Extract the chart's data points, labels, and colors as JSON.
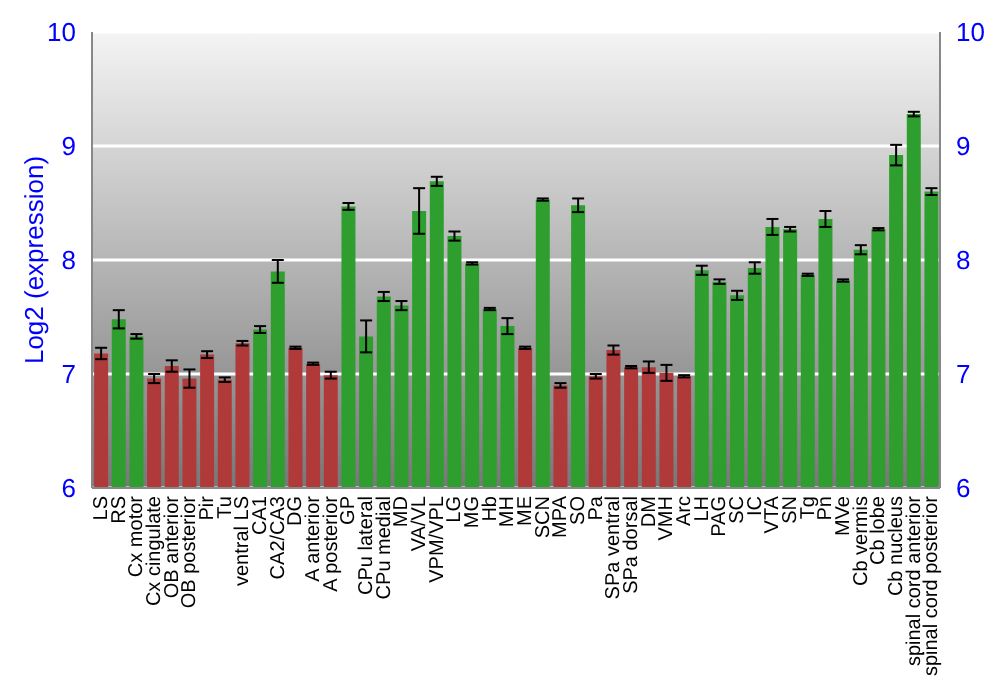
{
  "chart_data": {
    "type": "bar",
    "ylabel": "Log2 (expression)",
    "categories": [
      "LS",
      "RS",
      "Cx motor",
      "Cx cingulate",
      "OB anterior",
      "OB posterior",
      "Pir",
      "Tu",
      "ventral LS",
      "CA1",
      "CA2/CA3",
      "DG",
      "A anterior",
      "A posterior",
      "GP",
      "CPu lateral",
      "CPu medial",
      "MD",
      "VA/VL",
      "VPM/VPL",
      "LG",
      "MG",
      "Hb",
      "MH",
      "ME",
      "SCN",
      "MPA",
      "SO",
      "Pa",
      "SPa ventral",
      "SPa dorsal",
      "DM",
      "VMH",
      "Arc",
      "LH",
      "PAG",
      "SC",
      "IC",
      "VTA",
      "SN",
      "Tg",
      "Pn",
      "MVe",
      "Cb vermis",
      "Cb lobe",
      "Cb nucleus",
      "spinal cord anterior",
      "spinal cord posterior"
    ],
    "values": [
      7.18,
      7.48,
      7.33,
      6.96,
      7.07,
      6.96,
      7.17,
      6.95,
      7.27,
      7.39,
      7.9,
      7.23,
      7.09,
      6.99,
      8.47,
      7.33,
      7.68,
      7.6,
      8.43,
      8.69,
      8.21,
      7.97,
      7.57,
      7.42,
      7.23,
      8.53,
      6.9,
      8.48,
      6.98,
      7.21,
      7.06,
      7.06,
      7.01,
      6.98,
      7.91,
      7.81,
      7.69,
      7.93,
      8.29,
      8.27,
      7.87,
      8.36,
      7.82,
      8.09,
      8.27,
      8.92,
      9.28,
      8.6
    ],
    "errors": [
      0.05,
      0.08,
      0.02,
      0.04,
      0.05,
      0.08,
      0.03,
      0.02,
      0.02,
      0.03,
      0.1,
      0.01,
      0.01,
      0.03,
      0.03,
      0.14,
      0.04,
      0.04,
      0.2,
      0.04,
      0.04,
      0.01,
      0.01,
      0.07,
      0.01,
      0.01,
      0.02,
      0.06,
      0.02,
      0.04,
      0.01,
      0.05,
      0.07,
      0.01,
      0.04,
      0.02,
      0.04,
      0.05,
      0.07,
      0.02,
      0.01,
      0.07,
      0.01,
      0.04,
      0.01,
      0.09,
      0.02,
      0.03
    ],
    "colors": [
      "#b03a3a",
      "#2e9e2e",
      "#2e9e2e",
      "#b03a3a",
      "#b03a3a",
      "#b03a3a",
      "#b03a3a",
      "#b03a3a",
      "#b03a3a",
      "#2e9e2e",
      "#2e9e2e",
      "#b03a3a",
      "#b03a3a",
      "#b03a3a",
      "#2e9e2e",
      "#2e9e2e",
      "#2e9e2e",
      "#2e9e2e",
      "#2e9e2e",
      "#2e9e2e",
      "#2e9e2e",
      "#2e9e2e",
      "#2e9e2e",
      "#2e9e2e",
      "#b03a3a",
      "#2e9e2e",
      "#b03a3a",
      "#2e9e2e",
      "#b03a3a",
      "#b03a3a",
      "#b03a3a",
      "#b03a3a",
      "#b03a3a",
      "#b03a3a",
      "#2e9e2e",
      "#2e9e2e",
      "#2e9e2e",
      "#2e9e2e",
      "#2e9e2e",
      "#2e9e2e",
      "#2e9e2e",
      "#2e9e2e",
      "#2e9e2e",
      "#2e9e2e",
      "#2e9e2e",
      "#2e9e2e",
      "#2e9e2e",
      "#2e9e2e"
    ],
    "ylim": [
      6,
      10
    ],
    "yticks": [
      6,
      7,
      8,
      9,
      10
    ],
    "y2lim": [
      6,
      10
    ],
    "y2ticks": [
      6,
      7,
      8,
      9,
      10
    ],
    "grid": "y"
  }
}
